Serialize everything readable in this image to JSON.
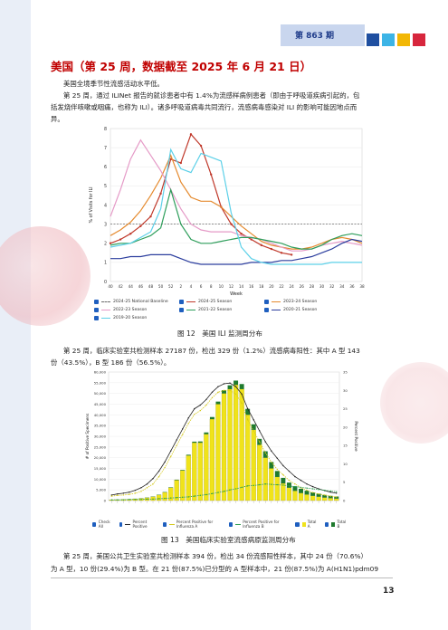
{
  "header": {
    "issue": "第 863 期",
    "squares": [
      "#1f4fa0",
      "#3cb4e6",
      "#f2b705",
      "#d7263d"
    ]
  },
  "section": {
    "title": "美国（第 25 周，数据截至 2025 年 6 月 21 日）",
    "p1": "美国全境季节性流感活动水平低。",
    "p2_l1": "第 25 周，通过 ILINet 报告的就诊患者中有 1.4%为流感样病例患者（即由于呼吸道疾病引起的，包",
    "p2_l2": "括发烧伴咳嗽或咽痛，也称为 ILI）。诸多呼吸道病毒共同流行，流感病毒感染对 ILI 的影响可能因地点而",
    "p2_l3": "异。",
    "p3_l1": "第 25 周，临床实验室共检测样本 27187 份，检出 329 份（1.2%）流感病毒阳性：其中 A 型 143",
    "p3_l2": "份（43.5%），B 型 186 份（56.5%）。",
    "p4_l1": "第 25 周，美国公共卫生实验室共检测样本 394 份，检出 34 份流感阳性样本，其中 24 份（70.6%）",
    "p4_l2": "为 A 型，10 份(29.4%)为 B 型。在 21 份(87.5%)已分型的 A 型样本中，21 份(87.5%)为 A(H1N1)pdm09"
  },
  "captions": {
    "fig12": "图 12　美国 ILI 监测周分布",
    "fig13": "图 13　美国临床实验室流感病原监测周分布"
  },
  "page_number": "13",
  "chart_data": [
    {
      "type": "line",
      "ylabel": "% of Visits for ILI",
      "xlabel": "Week",
      "ylim": [
        0,
        8
      ],
      "x": [
        "40",
        "42",
        "44",
        "46",
        "48",
        "50",
        "52",
        "2",
        "4",
        "6",
        "8",
        "10",
        "12",
        "14",
        "16",
        "18",
        "20",
        "22",
        "24",
        "26",
        "28",
        "30",
        "32",
        "34",
        "36",
        "38"
      ],
      "y_ticks": [
        "0",
        "1",
        "2",
        "3",
        "4",
        "5",
        "6",
        "7",
        "8"
      ],
      "series": [
        {
          "name": "2024-25 National Baseline",
          "color": "#6a6a6a",
          "dashed": true,
          "values": [
            3,
            3,
            3,
            3,
            3,
            3,
            3,
            3,
            3,
            3,
            3,
            3,
            3,
            3,
            3,
            3,
            3,
            3,
            3,
            3,
            3,
            3,
            3,
            3,
            3,
            3
          ]
        },
        {
          "name": "2024-25 Season",
          "color": "#c0392b",
          "values": [
            2.0,
            2.2,
            2.5,
            2.9,
            3.4,
            4.6,
            6.4,
            6.2,
            7.7,
            7.1,
            5.6,
            3.9,
            3.0,
            2.5,
            2.2,
            1.9,
            1.7,
            1.5,
            1.4,
            null,
            null,
            null,
            null,
            null,
            null,
            null
          ]
        },
        {
          "name": "2023-24 Season",
          "color": "#e58a2e",
          "values": [
            2.4,
            2.7,
            3.1,
            3.7,
            4.5,
            5.4,
            6.6,
            5.2,
            4.4,
            4.2,
            4.2,
            3.9,
            3.4,
            2.9,
            2.5,
            2.1,
            1.9,
            1.8,
            1.7,
            1.7,
            1.8,
            2.0,
            2.2,
            2.3,
            2.2,
            2.0
          ]
        },
        {
          "name": "2022-23 Season",
          "color": "#e59ac7",
          "values": [
            3.4,
            4.8,
            6.4,
            7.4,
            6.6,
            5.8,
            4.8,
            3.8,
            3.0,
            2.7,
            2.6,
            2.6,
            2.6,
            2.4,
            2.3,
            2.2,
            2.0,
            1.8,
            1.6,
            1.6,
            1.7,
            1.9,
            2.0,
            2.1,
            2.0,
            1.9
          ]
        },
        {
          "name": "2021-22 Season",
          "color": "#2e9e5b",
          "values": [
            1.9,
            2.0,
            2.0,
            2.2,
            2.4,
            2.8,
            4.8,
            3.0,
            2.2,
            2.0,
            2.0,
            2.1,
            2.2,
            2.3,
            2.3,
            2.2,
            2.1,
            2.0,
            1.8,
            1.7,
            1.7,
            1.9,
            2.2,
            2.4,
            2.5,
            2.4
          ]
        },
        {
          "name": "2020-21 Season",
          "color": "#2c3e9e",
          "values": [
            1.2,
            1.2,
            1.3,
            1.3,
            1.4,
            1.4,
            1.4,
            1.2,
            1.0,
            0.9,
            0.9,
            0.9,
            0.9,
            0.9,
            1.0,
            1.0,
            1.0,
            1.1,
            1.1,
            1.2,
            1.3,
            1.5,
            1.7,
            2.0,
            2.2,
            2.1
          ]
        },
        {
          "name": "2019-20 Season",
          "color": "#5cd0e8",
          "values": [
            1.8,
            1.9,
            2.0,
            2.3,
            2.6,
            3.8,
            6.9,
            5.9,
            5.7,
            6.7,
            6.5,
            6.3,
            3.6,
            1.8,
            1.2,
            1.0,
            0.9,
            0.9,
            0.9,
            0.9,
            0.9,
            0.9,
            1.0,
            1.0,
            1.0,
            1.0
          ]
        }
      ]
    },
    {
      "type": "bar",
      "ylabel": "# of Positive Specimens",
      "y2label": "Percent Positive",
      "ylim": [
        0,
        60000
      ],
      "y2lim": [
        0,
        35
      ],
      "y_ticks": [
        "0",
        "5,000",
        "10,000",
        "15,000",
        "20,000",
        "25,000",
        "30,000",
        "35,000",
        "40,000",
        "45,000",
        "50,000",
        "55,000",
        "60,000"
      ],
      "y2_ticks": [
        "0",
        "5",
        "10",
        "15",
        "20",
        "25",
        "30",
        "35"
      ],
      "weeks": 39,
      "total_a": [
        300,
        400,
        500,
        600,
        800,
        1000,
        1300,
        1800,
        2600,
        3800,
        6000,
        9500,
        14000,
        21000,
        27000,
        27000,
        31000,
        38000,
        45000,
        50000,
        52000,
        54000,
        52000,
        40000,
        33000,
        26000,
        20000,
        15000,
        11000,
        8000,
        6000,
        4500,
        3500,
        2800,
        2200,
        1800,
        1400,
        1100,
        900
      ],
      "total_b": [
        50,
        50,
        60,
        70,
        80,
        90,
        100,
        120,
        150,
        180,
        200,
        250,
        300,
        400,
        500,
        600,
        800,
        1000,
        1200,
        1500,
        1800,
        2000,
        2400,
        2800,
        2600,
        2800,
        3000,
        3000,
        2800,
        2600,
        2400,
        2200,
        2000,
        1800,
        1600,
        1400,
        1200,
        1100,
        1000
      ],
      "percent_positive": [
        1.5,
        1.8,
        2.0,
        2.3,
        2.8,
        3.5,
        4.5,
        6.0,
        8.0,
        10.5,
        13.5,
        16.5,
        19.5,
        22.5,
        25.0,
        26.0,
        27.5,
        29.5,
        31.0,
        31.8,
        32.0,
        31.0,
        29.0,
        25.0,
        22.0,
        19.0,
        16.0,
        13.5,
        11.5,
        9.5,
        8.0,
        6.5,
        5.5,
        4.5,
        3.8,
        3.2,
        2.7,
        2.3,
        2.0
      ],
      "percent_positive_a": [
        1.2,
        1.4,
        1.5,
        1.7,
        2.0,
        2.5,
        3.5,
        4.5,
        6.5,
        9.0,
        12.0,
        15.0,
        18.0,
        21.0,
        23.5,
        24.5,
        26.0,
        28.0,
        29.5,
        30.0,
        30.0,
        29.0,
        26.5,
        22.0,
        19.0,
        16.0,
        13.0,
        10.5,
        8.5,
        7.0,
        5.5,
        4.5,
        3.5,
        2.8,
        2.2,
        1.8,
        1.5,
        1.2,
        1.0
      ],
      "percent_positive_b": [
        0.2,
        0.2,
        0.2,
        0.3,
        0.3,
        0.3,
        0.4,
        0.4,
        0.5,
        0.6,
        0.7,
        0.8,
        0.9,
        1.0,
        1.2,
        1.4,
        1.6,
        1.9,
        2.2,
        2.5,
        2.9,
        3.2,
        3.6,
        4.0,
        4.1,
        4.3,
        4.5,
        4.4,
        4.3,
        4.2,
        4.0,
        3.8,
        3.6,
        3.4,
        3.2,
        3.0,
        2.8,
        2.6,
        2.4
      ],
      "legend": [
        "Check All",
        "Percent Positive",
        "Percent Positive for Influenza A",
        "Percent Positive for Influenza B",
        "Total A",
        "Total B"
      ],
      "colors": {
        "total_a": "#f0e31a",
        "total_b": "#1f7a2e",
        "percent_positive": "#222222",
        "percent_positive_a": "#d4c81a",
        "percent_positive_b": "#2e9e4f"
      }
    }
  ]
}
